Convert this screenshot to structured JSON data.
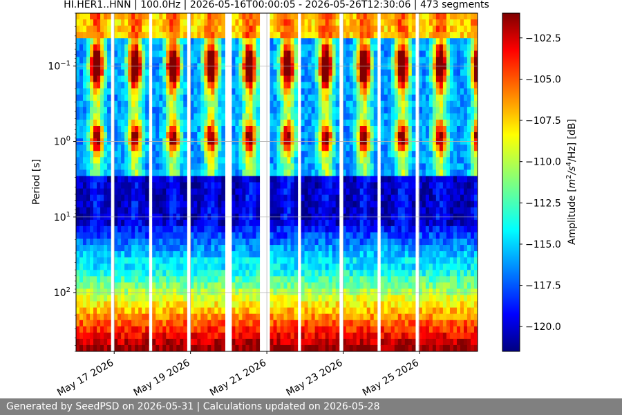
{
  "chart_data": {
    "type": "heatmap",
    "title": "HI.HER1..HNN | 100.0Hz | 2026-05-16T00:00:05 - 2026-05-26T12:30:06 | 473 segments",
    "ylabel": "Period [s]",
    "y_scale": "log",
    "y_inverted": true,
    "ylim": [
      0.02,
      600
    ],
    "yticks": [
      {
        "value": 0.1,
        "base": "10",
        "exp": "−1"
      },
      {
        "value": 1,
        "base": "10",
        "exp": "0"
      },
      {
        "value": 10,
        "base": "10",
        "exp": "1"
      },
      {
        "value": 100,
        "base": "10",
        "exp": "2"
      }
    ],
    "xlim": [
      "2026-05-16T00:00:05",
      "2026-05-26T12:30:06"
    ],
    "xticks": [
      {
        "value": "2026-05-17",
        "label": "May 17 2026"
      },
      {
        "value": "2026-05-19",
        "label": "May 19 2026"
      },
      {
        "value": "2026-05-21",
        "label": "May 21 2026"
      },
      {
        "value": "2026-05-23",
        "label": "May 23 2026"
      },
      {
        "value": "2026-05-25",
        "label": "May 25 2026"
      }
    ],
    "grid": true,
    "colormap": "jet",
    "colorbar": {
      "label_prefix": "Amplitude [",
      "label_unit": "m",
      "label_sup1": "2",
      "label_mid": "/s",
      "label_sup2": "4",
      "label_suffix": "/Hz] [dB]",
      "range": [
        -121.5,
        -101
      ],
      "ticks": [
        "-102.5",
        "-105.0",
        "-107.5",
        "-110.0",
        "-112.5",
        "-115.0",
        "-117.5",
        "-120.0"
      ],
      "tick_values": [
        -102.5,
        -105.0,
        -107.5,
        -110.0,
        -112.5,
        -115.0,
        -117.5,
        -120.0
      ]
    },
    "gaps": [
      [
        "2026-05-16T23:00:00",
        "2026-05-16T23:30:00"
      ],
      [
        "2026-05-17T22:30:00",
        "2026-05-17T23:00:00"
      ],
      [
        "2026-05-18T23:00:00",
        "2026-05-18T23:30:00"
      ],
      [
        "2026-05-19T23:30:00",
        "2026-05-20T00:00:00"
      ],
      [
        "2026-05-20T20:30:00",
        "2026-05-21T00:00:00"
      ],
      [
        "2026-05-21T20:30:00",
        "2026-05-21T21:00:00"
      ],
      [
        "2026-05-22T23:00:00",
        "2026-05-22T23:30:00"
      ],
      [
        "2026-05-23T22:30:00",
        "2026-05-23T23:00:00"
      ],
      [
        "2026-05-24T22:00:00",
        "2026-05-24T22:30:00"
      ]
    ]
  },
  "footer": {
    "text": "Generated by SeedPSD on 2026-05-31 | Calculations updated on 2026-05-28"
  }
}
